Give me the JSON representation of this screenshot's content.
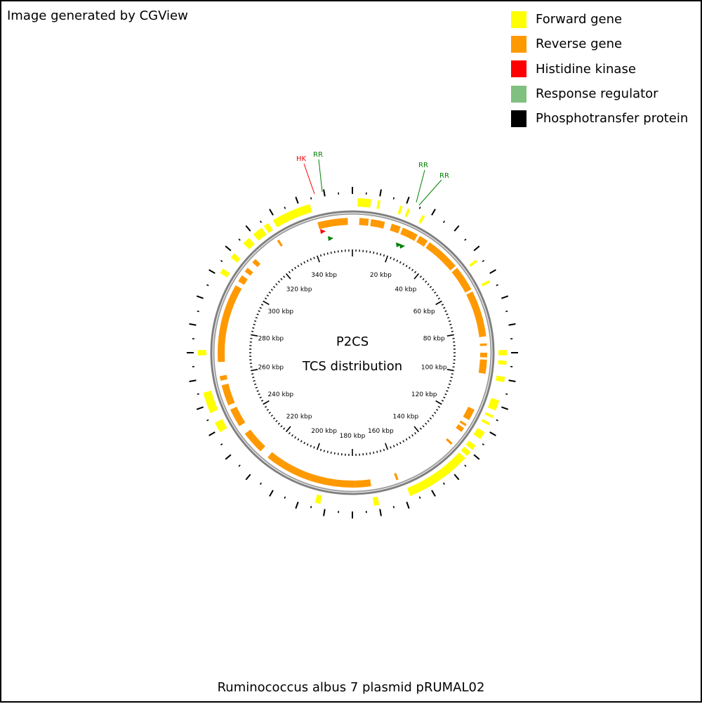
{
  "header": {
    "note": "Image generated by CGView"
  },
  "legend": {
    "items": [
      {
        "label": "Forward gene",
        "color": "#ffff00"
      },
      {
        "label": "Reverse gene",
        "color": "#ff9900"
      },
      {
        "label": "Histidine kinase",
        "color": "#ff0000"
      },
      {
        "label": "Response regulator",
        "color": "#80c080"
      },
      {
        "label": "Phosphotransfer protein",
        "color": "#000000"
      }
    ]
  },
  "map": {
    "center_title": "P2CS",
    "center_subtitle": "TCS distribution",
    "sequence_length_kbp": 360,
    "backbone_color": "#808080",
    "tick_labels": [
      "20 kbp",
      "40 kbp",
      "60 kbp",
      "80 kbp",
      "100 kbp",
      "120 kbp",
      "140 kbp",
      "160 kbp",
      "180 kbp",
      "200 kbp",
      "220 kbp",
      "240 kbp",
      "260 kbp",
      "280 kbp",
      "300 kbp",
      "320 kbp",
      "340 kbp"
    ],
    "features": [
      {
        "label": "HK",
        "type": "Histidine kinase",
        "position_kbp": 344,
        "color": "#ff0000"
      },
      {
        "label": "RR",
        "type": "Response regulator",
        "position_kbp": 347,
        "color": "#008000"
      },
      {
        "label": "RR",
        "type": "Response regulator",
        "position_kbp": 15,
        "color": "#008000"
      },
      {
        "label": "RR",
        "type": "Response regulator",
        "position_kbp": 15.8,
        "color": "#008000"
      }
    ]
  },
  "footer": {
    "caption": "Ruminococcus albus 7 plasmid pRUMAL02"
  }
}
